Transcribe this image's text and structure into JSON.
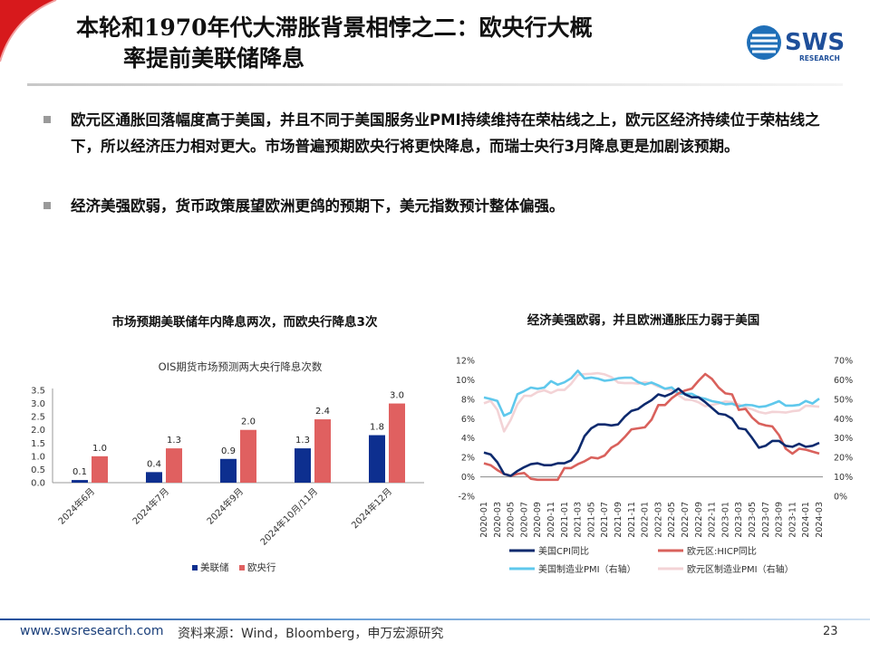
{
  "header": {
    "title_line1": "本轮和1970年代大滞胀背景相悖之二：欧央行大概",
    "title_line2": "率提前美联储降息",
    "logo_text": "SWS",
    "logo_sub": "RESEARCH"
  },
  "bullets": [
    "欧元区通胀回落幅度高于美国，并且不同于美国服务业PMI持续维持在荣枯线之上，欧元区经济持续位于荣枯线之下，所以经济压力相对更大。市场普遍预期欧央行将更快降息，而瑞士央行3月降息更是加剧该预期。",
    "经济美强欧弱，货币政策展望欧洲更鸽的预期下，美元指数预计整体偏强。"
  ],
  "footer": {
    "url": "www.swsresearch.com",
    "source": "资料来源：Wind，Bloomberg，申万宏源研究",
    "page": "23"
  },
  "colors": {
    "fed": "#0d2f8f",
    "ecb": "#e06060",
    "us_cpi": "#0d2a6e",
    "ez_hicp": "#d9615c",
    "us_pmi": "#5fc8ec",
    "ez_pmi": "#f3d3d6"
  },
  "chart_data": [
    {
      "type": "bar",
      "panel_title": "市场预期美联储年内降息两次，而欧央行降息3次",
      "title": "OIS期货市场预测两大央行降息次数",
      "categories": [
        "2024年6月",
        "2024年7月",
        "2024年9月",
        "2024年10月/11月",
        "2024年12月"
      ],
      "series": [
        {
          "name": "美联储",
          "values": [
            0.1,
            0.4,
            0.9,
            1.3,
            1.8
          ]
        },
        {
          "name": "欧央行",
          "values": [
            1.0,
            1.3,
            2.0,
            2.4,
            3.0
          ]
        }
      ],
      "ylim": [
        0,
        3.5
      ],
      "yticks": [
        "0.0",
        "0.5",
        "1.0",
        "1.5",
        "2.0",
        "2.5",
        "3.0",
        "3.5"
      ],
      "legend": "bottom"
    },
    {
      "type": "line",
      "panel_title": "经济美强欧弱，并且欧洲通胀压力弱于美国",
      "x_labels": [
        "2020-01",
        "2020-03",
        "2020-05",
        "2020-07",
        "2020-09",
        "2020-11",
        "2021-01",
        "2021-03",
        "2021-05",
        "2021-07",
        "2021-09",
        "2021-11",
        "2022-01",
        "2022-03",
        "2022-05",
        "2022-07",
        "2022-09",
        "2022-11",
        "2023-01",
        "2023-03",
        "2023-05",
        "2023-07",
        "2023-09",
        "2023-11",
        "2024-01",
        "2024-03"
      ],
      "left_axis": {
        "ylim": [
          -2,
          12
        ],
        "ticks": [
          "-2%",
          "0%",
          "2%",
          "4%",
          "6%",
          "8%",
          "10%",
          "12%"
        ]
      },
      "right_axis": {
        "ylim": [
          0,
          70
        ],
        "ticks": [
          "0%",
          "10%",
          "20%",
          "30%",
          "40%",
          "50%",
          "60%",
          "70%"
        ]
      },
      "series": [
        {
          "name": "美国CPI同比",
          "axis": "left",
          "values": [
            2.5,
            2.3,
            1.5,
            0.3,
            0.1,
            0.6,
            1.0,
            1.3,
            1.4,
            1.2,
            1.2,
            1.4,
            1.4,
            1.7,
            2.6,
            4.2,
            5.0,
            5.4,
            5.4,
            5.3,
            5.4,
            6.2,
            6.8,
            7.0,
            7.5,
            7.9,
            8.5,
            8.3,
            8.6,
            9.1,
            8.5,
            8.2,
            8.2,
            7.7,
            7.1,
            6.5,
            6.4,
            6.0,
            5.0,
            4.9,
            4.0,
            3.0,
            3.2,
            3.7,
            3.7,
            3.2,
            3.1,
            3.4,
            3.1,
            3.2,
            3.5
          ]
        },
        {
          "name": "欧元区:HICP同比",
          "axis": "left",
          "values": [
            1.4,
            1.2,
            0.7,
            0.3,
            0.1,
            0.3,
            0.4,
            -0.2,
            -0.3,
            -0.3,
            -0.3,
            -0.3,
            0.9,
            0.9,
            1.3,
            1.6,
            2.0,
            1.9,
            2.2,
            3.0,
            3.4,
            4.1,
            4.9,
            5.0,
            5.1,
            5.9,
            7.4,
            7.4,
            8.1,
            8.6,
            8.9,
            9.1,
            9.9,
            10.6,
            10.1,
            9.2,
            8.6,
            8.5,
            6.9,
            7.0,
            6.1,
            5.5,
            5.3,
            5.2,
            4.3,
            2.9,
            2.4,
            2.9,
            2.8,
            2.6,
            2.4
          ]
        },
        {
          "name": "美国制造业PMI（右轴）",
          "axis": "right",
          "values": [
            50.9,
            50.1,
            49.1,
            41.5,
            43.1,
            52.6,
            54.2,
            56.0,
            55.4,
            56.0,
            59.3,
            57.5,
            58.7,
            60.8,
            64.7,
            60.7,
            61.2,
            60.6,
            59.5,
            59.9,
            60.8,
            61.1,
            61.1,
            58.8,
            57.6,
            58.6,
            57.1,
            55.4,
            56.1,
            53.0,
            52.8,
            52.8,
            50.9,
            50.2,
            49.0,
            48.4,
            47.4,
            47.7,
            46.3,
            47.1,
            46.9,
            46.0,
            46.4,
            47.6,
            49.0,
            46.7,
            46.7,
            47.1,
            49.1,
            47.8,
            50.3
          ]
        },
        {
          "name": "欧元区制造业PMI（右轴）",
          "axis": "right",
          "values": [
            47.9,
            49.2,
            44.5,
            33.4,
            39.4,
            47.4,
            51.8,
            51.7,
            53.7,
            54.6,
            53.2,
            54.8,
            54.8,
            57.9,
            62.5,
            62.9,
            63.1,
            63.4,
            62.8,
            61.4,
            58.6,
            58.3,
            58.4,
            58.0,
            58.7,
            58.2,
            56.5,
            55.5,
            54.6,
            52.1,
            49.8,
            49.6,
            48.4,
            46.4,
            47.1,
            47.8,
            48.8,
            48.5,
            47.3,
            45.8,
            44.8,
            43.4,
            42.7,
            43.5,
            43.4,
            43.1,
            43.8,
            44.2,
            46.6,
            46.5,
            46.1
          ]
        }
      ],
      "legend": "bottom"
    }
  ]
}
